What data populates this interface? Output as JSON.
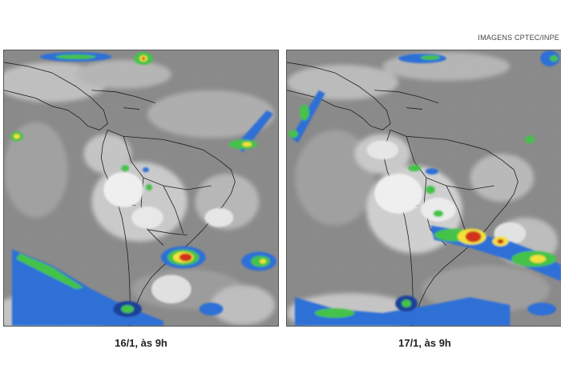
{
  "credit": "IMAGENS CPTEC/INPE",
  "panels": [
    {
      "caption": "16/1, às 9h"
    },
    {
      "caption": "17/1, às 9h"
    }
  ],
  "colors": {
    "ir_background": "#8d8d8d",
    "cloud_white": "#f2f2f2",
    "cold_top_blue": "#2f6fd6",
    "cold_top_green": "#45c24a",
    "cold_top_yellow": "#f2e23a",
    "cold_top_red": "#d2321e"
  }
}
